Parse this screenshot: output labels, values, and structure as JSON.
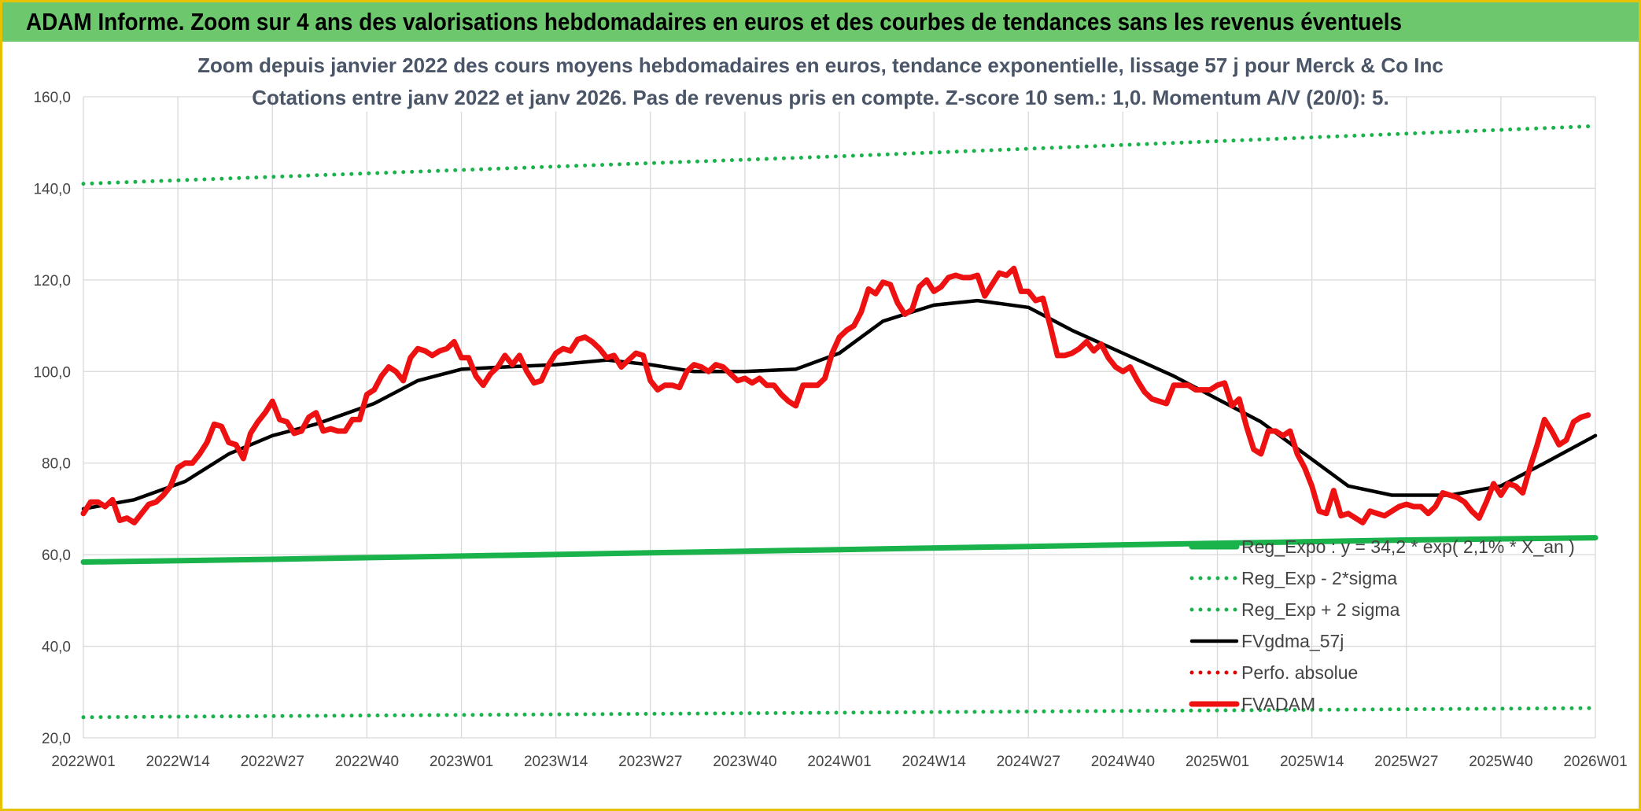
{
  "header": {
    "title": "ADAM Informe. Zoom sur 4 ans des valorisations hebdomadaires en euros et des courbes de tendances sans les revenus éventuels"
  },
  "chart_data": {
    "type": "line",
    "title": "Zoom depuis janvier 2022 des cours moyens hebdomadaires en euros, tendance exponentielle, lissage 57 j pour Merck & Co Inc",
    "subtitle": "Cotations entre janv 2022 et janv 2026. Pas de revenus pris en compte. Z-score 10 sem.: 1,0. Momentum A/V (20/0): 5.",
    "xlabel": "",
    "ylabel": "",
    "ylim": [
      20,
      160
    ],
    "yticks": [
      "20,0",
      "40,0",
      "60,0",
      "80,0",
      "100,0",
      "120,0",
      "140,0",
      "160,0"
    ],
    "x_ticks": [
      "2022W01",
      "2022W14",
      "2022W27",
      "2022W40",
      "2023W01",
      "2023W14",
      "2023W27",
      "2023W40",
      "2024W01",
      "2024W14",
      "2024W27",
      "2024W40",
      "2025W01",
      "2025W14",
      "2025W27",
      "2025W40",
      "2026W01"
    ],
    "x_range_weeks": [
      0,
      208
    ],
    "grid": true,
    "legend_position": "bottom-right",
    "series": [
      {
        "name": "Reg_Expo : y = 34,2 * exp( 2,1% * X_an )",
        "style": "solid-thick",
        "color": "#19b24b",
        "points": [
          [
            0,
            58.4
          ],
          [
            26,
            59.0
          ],
          [
            52,
            59.7
          ],
          [
            78,
            60.4
          ],
          [
            104,
            61.1
          ],
          [
            130,
            61.8
          ],
          [
            156,
            62.5
          ],
          [
            182,
            63.2
          ],
          [
            208,
            63.7
          ]
        ]
      },
      {
        "name": "Reg_Exp - 2*sigma",
        "style": "dotted",
        "color": "#19b24b",
        "points": [
          [
            0,
            24.5
          ],
          [
            52,
            25.0
          ],
          [
            104,
            25.5
          ],
          [
            156,
            26.0
          ],
          [
            208,
            26.5
          ]
        ]
      },
      {
        "name": "Reg_Exp + 2 sigma",
        "style": "dotted",
        "color": "#19b24b",
        "points": [
          [
            0,
            141.0
          ],
          [
            52,
            144.0
          ],
          [
            104,
            147.0
          ],
          [
            156,
            150.3
          ],
          [
            208,
            153.6
          ]
        ]
      },
      {
        "name": "FVgdma_57j",
        "style": "solid",
        "color": "#000000",
        "points": [
          [
            0,
            70.0
          ],
          [
            7,
            72.0
          ],
          [
            14,
            76.0
          ],
          [
            20,
            82.0
          ],
          [
            26,
            86.0
          ],
          [
            32,
            88.5
          ],
          [
            40,
            93.0
          ],
          [
            46,
            98.0
          ],
          [
            52,
            100.5
          ],
          [
            58,
            101.0
          ],
          [
            65,
            101.5
          ],
          [
            72,
            102.5
          ],
          [
            78,
            101.5
          ],
          [
            84,
            100.0
          ],
          [
            91,
            100.0
          ],
          [
            98,
            100.5
          ],
          [
            104,
            104.0
          ],
          [
            110,
            111.0
          ],
          [
            117,
            114.5
          ],
          [
            123,
            115.5
          ],
          [
            130,
            114.0
          ],
          [
            136,
            109.0
          ],
          [
            143,
            104.0
          ],
          [
            150,
            99.0
          ],
          [
            156,
            94.0
          ],
          [
            162,
            89.0
          ],
          [
            168,
            82.0
          ],
          [
            174,
            75.0
          ],
          [
            180,
            73.0
          ],
          [
            188,
            73.0
          ],
          [
            195,
            75.0
          ],
          [
            201,
            80.0
          ],
          [
            208,
            86.0
          ]
        ]
      },
      {
        "name": "Perfo. absolue",
        "style": "dotted",
        "color": "#e00000",
        "points": []
      },
      {
        "name": "FVADAM",
        "style": "solid-thick",
        "color": "#ee1111",
        "points": [
          [
            0,
            69.0
          ],
          [
            1,
            71.5
          ],
          [
            2,
            71.5
          ],
          [
            3,
            70.5
          ],
          [
            4,
            72.0
          ],
          [
            5,
            67.5
          ],
          [
            6,
            68.0
          ],
          [
            7,
            67.0
          ],
          [
            8,
            69.0
          ],
          [
            9,
            71.0
          ],
          [
            10,
            71.5
          ],
          [
            11,
            73.0
          ],
          [
            12,
            75.0
          ],
          [
            13,
            79.0
          ],
          [
            14,
            80.0
          ],
          [
            15,
            80.0
          ],
          [
            16,
            82.0
          ],
          [
            17,
            84.5
          ],
          [
            18,
            88.5
          ],
          [
            19,
            88.0
          ],
          [
            20,
            84.5
          ],
          [
            21,
            84.0
          ],
          [
            22,
            81.0
          ],
          [
            23,
            86.5
          ],
          [
            24,
            89.0
          ],
          [
            25,
            91.0
          ],
          [
            26,
            93.5
          ],
          [
            27,
            89.5
          ],
          [
            28,
            89.0
          ],
          [
            29,
            86.5
          ],
          [
            30,
            87.0
          ],
          [
            31,
            90.0
          ],
          [
            32,
            91.0
          ],
          [
            33,
            87.0
          ],
          [
            34,
            87.5
          ],
          [
            35,
            87.0
          ],
          [
            36,
            87.0
          ],
          [
            37,
            89.5
          ],
          [
            38,
            89.5
          ],
          [
            39,
            95.0
          ],
          [
            40,
            96.0
          ],
          [
            41,
            99.0
          ],
          [
            42,
            101.0
          ],
          [
            43,
            100.0
          ],
          [
            44,
            98.0
          ],
          [
            45,
            103.0
          ],
          [
            46,
            105.0
          ],
          [
            47,
            104.5
          ],
          [
            48,
            103.5
          ],
          [
            49,
            104.5
          ],
          [
            50,
            105.0
          ],
          [
            51,
            106.5
          ],
          [
            52,
            103.0
          ],
          [
            53,
            103.0
          ],
          [
            54,
            99.0
          ],
          [
            55,
            97.0
          ],
          [
            56,
            99.5
          ],
          [
            57,
            101.0
          ],
          [
            58,
            103.5
          ],
          [
            59,
            101.5
          ],
          [
            60,
            103.5
          ],
          [
            61,
            100.0
          ],
          [
            62,
            97.5
          ],
          [
            63,
            98.0
          ],
          [
            64,
            101.5
          ],
          [
            65,
            104.0
          ],
          [
            66,
            105.0
          ],
          [
            67,
            104.5
          ],
          [
            68,
            107.0
          ],
          [
            69,
            107.5
          ],
          [
            70,
            106.5
          ],
          [
            71,
            105.0
          ],
          [
            72,
            103.0
          ],
          [
            73,
            103.5
          ],
          [
            74,
            101.0
          ],
          [
            75,
            102.5
          ],
          [
            76,
            104.0
          ],
          [
            77,
            103.5
          ],
          [
            78,
            98.0
          ],
          [
            79,
            96.0
          ],
          [
            80,
            97.0
          ],
          [
            81,
            97.0
          ],
          [
            82,
            96.5
          ],
          [
            83,
            100.0
          ],
          [
            84,
            101.5
          ],
          [
            85,
            101.0
          ],
          [
            86,
            100.0
          ],
          [
            87,
            101.5
          ],
          [
            88,
            101.0
          ],
          [
            89,
            99.5
          ],
          [
            90,
            98.0
          ],
          [
            91,
            98.5
          ],
          [
            92,
            97.5
          ],
          [
            93,
            98.5
          ],
          [
            94,
            97.0
          ],
          [
            95,
            97.0
          ],
          [
            96,
            95.0
          ],
          [
            97,
            93.5
          ],
          [
            98,
            92.5
          ],
          [
            99,
            97.0
          ],
          [
            100,
            97.0
          ],
          [
            101,
            97.0
          ],
          [
            102,
            98.5
          ],
          [
            103,
            104.0
          ],
          [
            104,
            107.5
          ],
          [
            105,
            109.0
          ],
          [
            106,
            110.0
          ],
          [
            107,
            113.0
          ],
          [
            108,
            118.0
          ],
          [
            109,
            117.0
          ],
          [
            110,
            119.5
          ],
          [
            111,
            119.0
          ],
          [
            112,
            115.0
          ],
          [
            113,
            112.5
          ],
          [
            114,
            113.5
          ],
          [
            115,
            118.5
          ],
          [
            116,
            120.0
          ],
          [
            117,
            117.5
          ],
          [
            118,
            118.5
          ],
          [
            119,
            120.5
          ],
          [
            120,
            121.0
          ],
          [
            121,
            120.5
          ],
          [
            122,
            120.5
          ],
          [
            123,
            121.0
          ],
          [
            124,
            116.5
          ],
          [
            125,
            119.0
          ],
          [
            126,
            121.5
          ],
          [
            127,
            121.0
          ],
          [
            128,
            122.5
          ],
          [
            129,
            117.5
          ],
          [
            130,
            117.5
          ],
          [
            131,
            115.5
          ],
          [
            132,
            116.0
          ],
          [
            133,
            110.0
          ],
          [
            134,
            103.5
          ],
          [
            135,
            103.5
          ],
          [
            136,
            104.0
          ],
          [
            137,
            105.0
          ],
          [
            138,
            106.5
          ],
          [
            139,
            104.5
          ],
          [
            140,
            106.0
          ],
          [
            141,
            103.0
          ],
          [
            142,
            101.0
          ],
          [
            143,
            100.0
          ],
          [
            144,
            101.0
          ],
          [
            145,
            98.0
          ],
          [
            146,
            95.5
          ],
          [
            147,
            94.0
          ],
          [
            148,
            93.5
          ],
          [
            149,
            93.0
          ],
          [
            150,
            97.0
          ],
          [
            151,
            97.0
          ],
          [
            152,
            97.0
          ],
          [
            153,
            96.0
          ],
          [
            154,
            96.0
          ],
          [
            155,
            96.0
          ],
          [
            156,
            97.0
          ],
          [
            157,
            97.5
          ],
          [
            158,
            92.5
          ],
          [
            159,
            94.0
          ],
          [
            160,
            88.0
          ],
          [
            161,
            83.0
          ],
          [
            162,
            82.0
          ],
          [
            163,
            87.0
          ],
          [
            164,
            87.0
          ],
          [
            165,
            86.0
          ],
          [
            166,
            87.0
          ],
          [
            167,
            82.0
          ],
          [
            168,
            79.0
          ],
          [
            169,
            75.0
          ],
          [
            170,
            69.5
          ],
          [
            171,
            69.0
          ],
          [
            172,
            74.0
          ],
          [
            173,
            68.5
          ],
          [
            174,
            69.0
          ],
          [
            175,
            68.0
          ],
          [
            176,
            67.0
          ],
          [
            177,
            69.5
          ],
          [
            178,
            69.0
          ],
          [
            179,
            68.5
          ],
          [
            180,
            69.5
          ],
          [
            181,
            70.5
          ],
          [
            182,
            71.0
          ],
          [
            183,
            70.5
          ],
          [
            184,
            70.5
          ],
          [
            185,
            69.0
          ],
          [
            186,
            70.5
          ],
          [
            187,
            73.5
          ],
          [
            188,
            73.0
          ],
          [
            189,
            72.5
          ],
          [
            190,
            71.5
          ],
          [
            191,
            69.5
          ],
          [
            192,
            68.0
          ],
          [
            193,
            71.5
          ],
          [
            194,
            75.5
          ],
          [
            195,
            73.0
          ],
          [
            196,
            75.5
          ],
          [
            197,
            75.0
          ],
          [
            198,
            73.5
          ],
          [
            199,
            79.0
          ],
          [
            200,
            84.0
          ],
          [
            201,
            89.5
          ],
          [
            202,
            87.0
          ],
          [
            203,
            84.0
          ],
          [
            204,
            85.0
          ],
          [
            205,
            89.0
          ],
          [
            206,
            90.0
          ],
          [
            207,
            90.5
          ]
        ]
      }
    ]
  }
}
